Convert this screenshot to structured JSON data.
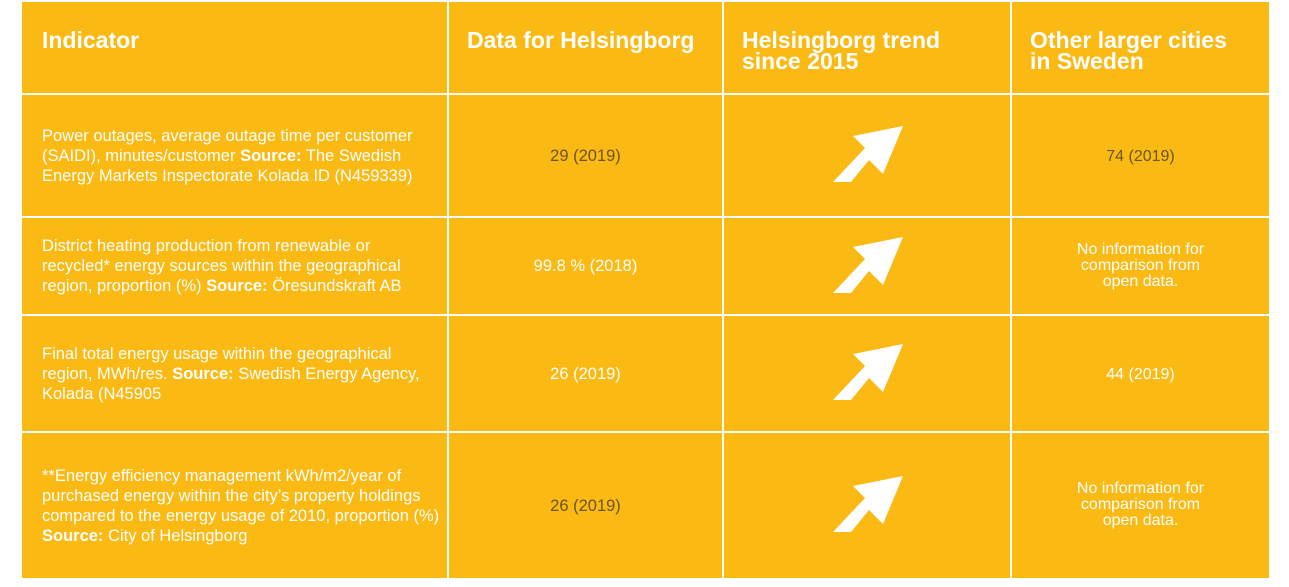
{
  "table": {
    "header": [
      "Indicator",
      "Data for Helsingborg",
      "Helsingborg trend since 2015",
      "Other larger cities in Sweden"
    ],
    "rows": [
      {
        "indicator": "Power outages, average outage time per customer (SAIDI), minutes/customer",
        "source_label": "Source:",
        "source": "The Swedish Energy Markets Inspectorate Kolada ID (N459339)",
        "data": "29 (2019)",
        "other": "74 (2019)"
      },
      {
        "indicator": "District heating production from renewable or recycled* energy sources within the geographical region, proportion (%)",
        "source_label": "Source:",
        "source": "Öresundskraft AB",
        "data": "99.8 % (2018)",
        "other": "No information for comparison from open data."
      },
      {
        "indicator": "Final total energy usage within the geographical region, MWh/res.",
        "source_label": "Source:",
        "source": "Swedish Energy Agency, Kolada (N45905",
        "data": "26 (2019)",
        "other": "44 (2019)"
      },
      {
        "indicator": "**Energy efficiency management kWh/m2/year of purchased energy within the city’s property holdings compared to the energy usage of 2010, proportion (%)",
        "source_label": "Source:",
        "source": "City of Helsingborg",
        "data": "26 (2019)",
        "other": "No information for comparison from open data."
      }
    ]
  }
}
